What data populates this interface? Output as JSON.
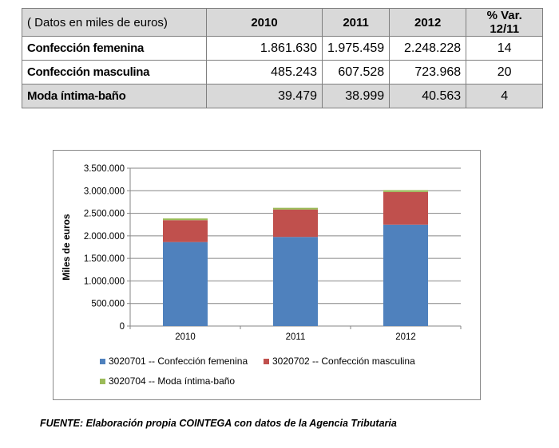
{
  "table": {
    "headers": [
      "( Datos en miles de euros)",
      "2010",
      "2011",
      "2012",
      "% Var. 12/11"
    ],
    "rows": [
      {
        "label": "Confección femenina",
        "cells": [
          "1.861.630",
          "1.975.459",
          "2.248.228",
          "14"
        ]
      },
      {
        "label": "Confección masculina",
        "cells": [
          "485.243",
          "607.528",
          "723.968",
          "20"
        ]
      },
      {
        "label": "Moda íntima-baño",
        "cells": [
          "39.479",
          "38.999",
          "40.563",
          "4"
        ]
      }
    ]
  },
  "chart_data": {
    "type": "bar",
    "stacked": true,
    "categories": [
      "2010",
      "2011",
      "2012"
    ],
    "series": [
      {
        "name": "3020701 -- Confección femenina",
        "values": [
          1861630,
          1975459,
          2248228
        ],
        "color": "#4f81bd"
      },
      {
        "name": "3020702 -- Confección masculina",
        "values": [
          485243,
          607528,
          723968
        ],
        "color": "#c0504d"
      },
      {
        "name": "3020704 -- Moda íntima-baño",
        "values": [
          39479,
          38999,
          40563
        ],
        "color": "#9bbb59"
      }
    ],
    "ylabel": "Miles de euros",
    "xlabel": "",
    "ylim": [
      0,
      3500000
    ],
    "yticks": [
      0,
      500000,
      1000000,
      1500000,
      2000000,
      2500000,
      3000000,
      3500000
    ],
    "ytick_labels": [
      "0",
      "500.000",
      "1.000.000",
      "1.500.000",
      "2.000.000",
      "2.500.000",
      "3.000.000",
      "3.500.000"
    ],
    "grid": true,
    "legend_position": "bottom"
  },
  "source_note": "FUENTE: Elaboración propia COINTEGA con datos de la Agencia Tributaria"
}
